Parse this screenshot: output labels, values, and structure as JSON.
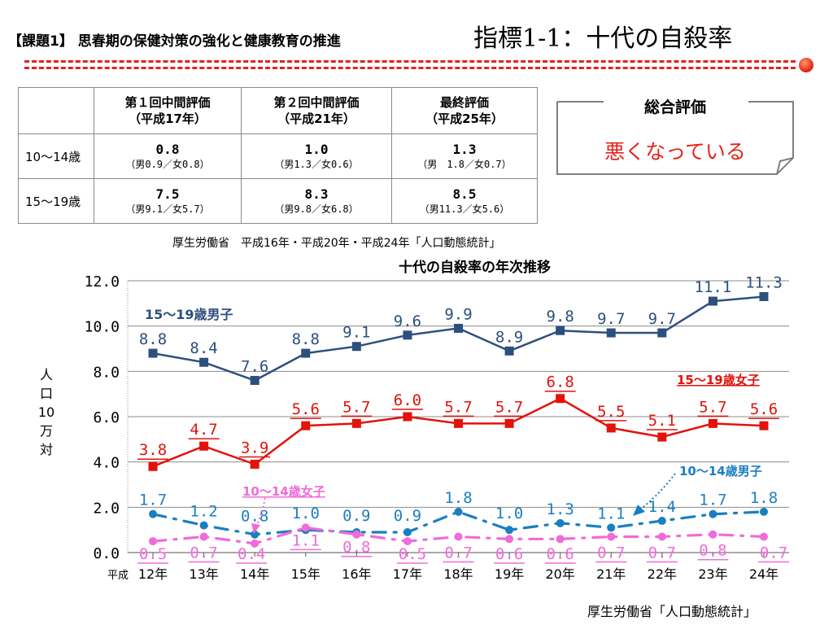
{
  "header": {
    "left": "【課題1】 思春期の保健対策の強化と健康教育の推進",
    "right": "指標1-1：十代の自殺率"
  },
  "table": {
    "headers": [
      {
        "line1": "",
        "line2": ""
      },
      {
        "line1": "第１回中間評価",
        "line2": "（平成17年）"
      },
      {
        "line1": "第２回中間評価",
        "line2": "（平成21年）"
      },
      {
        "line1": "最終評価",
        "line2": "（平成25年）"
      }
    ],
    "rows": [
      {
        "label": "10～14歳",
        "cells": [
          {
            "value": "0.8",
            "detail": "（男0.9／女0.8）"
          },
          {
            "value": "1.0",
            "detail": "（男1.3／女0.6）"
          },
          {
            "value": "1.3",
            "detail": "（男　1.8／女0.7）"
          }
        ]
      },
      {
        "label": "15～19歳",
        "cells": [
          {
            "value": "7.5",
            "detail": "（男9.1／女5.7）"
          },
          {
            "value": "8.3",
            "detail": "（男9.8／女6.8）"
          },
          {
            "value": "8.5",
            "detail": "（男11.3／女5.6）"
          }
        ]
      }
    ]
  },
  "source_table": "厚生労働省　平成16年・平成20年・平成24年「人口動態統計」",
  "evaluation": {
    "title": "総合評価",
    "result": "悪くなっている"
  },
  "source_chart": "厚生労働省「人口動態統計」",
  "colors": {
    "navy": "#2d4f7d",
    "red": "#e3120b",
    "blue": "#1a7fc2",
    "pink": "#f06bd9",
    "accent": "#e3241b"
  },
  "chart_data": {
    "type": "line",
    "title": "十代の自殺率の年次推移",
    "ylabel": "人口10万対",
    "x_prefix": "平成",
    "categories": [
      "12年",
      "13年",
      "14年",
      "15年",
      "16年",
      "17年",
      "18年",
      "19年",
      "20年",
      "21年",
      "22年",
      "23年",
      "24年"
    ],
    "ylim": [
      0,
      12
    ],
    "yticks": [
      "0.0",
      "2.0",
      "4.0",
      "6.0",
      "8.0",
      "10.0",
      "12.0"
    ],
    "series": [
      {
        "name": "15～19歳男子",
        "color": "#2d4f7d",
        "marker": "square",
        "dash": "solid",
        "values": [
          8.8,
          8.4,
          7.6,
          8.8,
          9.1,
          9.6,
          9.9,
          8.9,
          9.8,
          9.7,
          9.7,
          11.1,
          11.3
        ]
      },
      {
        "name": "15～19歳女子",
        "color": "#e3120b",
        "marker": "square",
        "dash": "solid",
        "values": [
          3.8,
          4.7,
          3.9,
          5.6,
          5.7,
          6.0,
          5.7,
          5.7,
          6.8,
          5.5,
          5.1,
          5.7,
          5.6
        ]
      },
      {
        "name": "10～14歳男子",
        "color": "#1a7fc2",
        "marker": "circle",
        "dash": "dashdot",
        "values": [
          1.7,
          1.2,
          0.8,
          1.0,
          0.9,
          0.9,
          1.8,
          1.0,
          1.3,
          1.1,
          1.4,
          1.7,
          1.8
        ]
      },
      {
        "name": "10～14歳女子",
        "color": "#f06bd9",
        "marker": "circle",
        "dash": "dashdot",
        "values": [
          0.5,
          0.7,
          0.4,
          1.1,
          0.8,
          0.5,
          0.7,
          0.6,
          0.6,
          0.7,
          0.7,
          0.8,
          0.7
        ]
      }
    ]
  }
}
